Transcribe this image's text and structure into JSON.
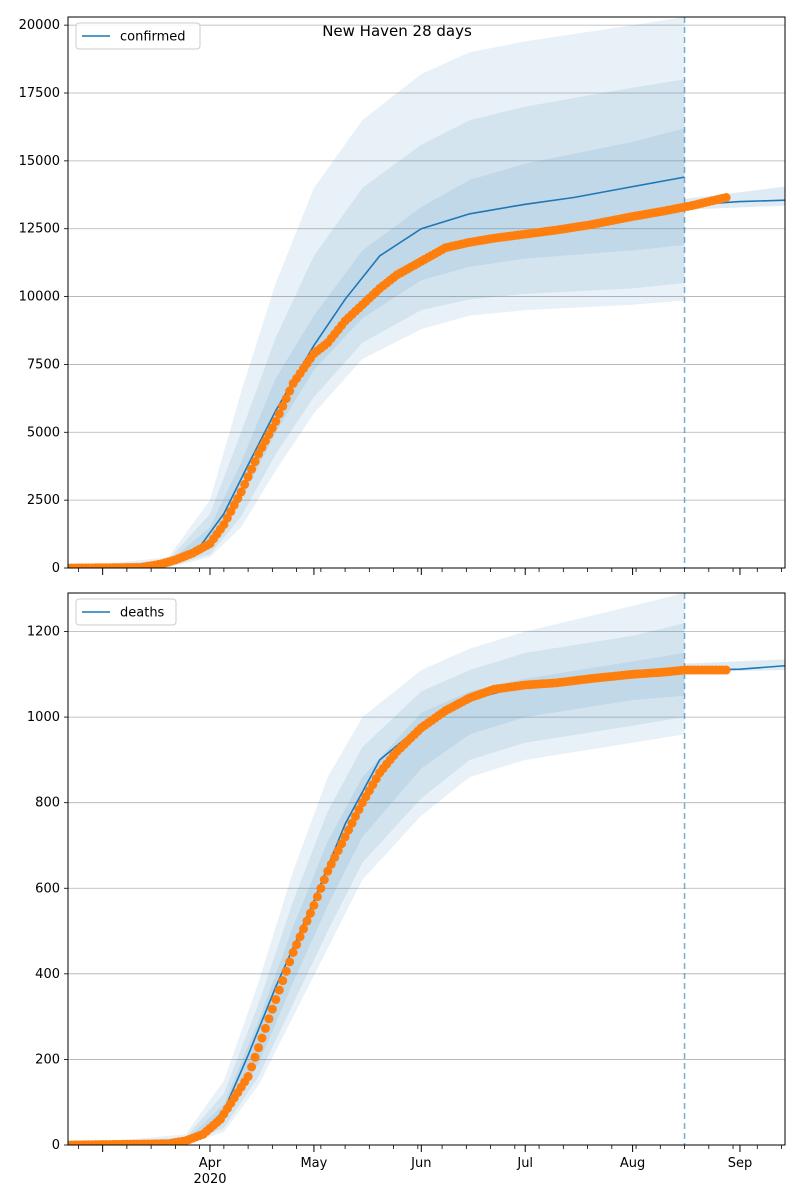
{
  "title": "New Haven 28 days",
  "colors": {
    "model": "#1f77b4",
    "observed": "#ff7f0e",
    "grid": "#b0b0b0",
    "band": "#1f77b4"
  },
  "x_axis": {
    "start": "2020-02-20",
    "end": "2020-09-14",
    "major_ticks": [
      {
        "date": "2020-04-01",
        "label": "Apr",
        "sublabel": "2020"
      },
      {
        "date": "2020-05-01",
        "label": "May",
        "sublabel": ""
      },
      {
        "date": "2020-06-01",
        "label": "Jun",
        "sublabel": ""
      },
      {
        "date": "2020-07-01",
        "label": "Jul",
        "sublabel": ""
      },
      {
        "date": "2020-08-01",
        "label": "Aug",
        "sublabel": ""
      },
      {
        "date": "2020-09-01",
        "label": "Sep",
        "sublabel": ""
      }
    ],
    "forecast_date": "2020-08-16"
  },
  "chart_data": [
    {
      "type": "line",
      "legend": "confirmed",
      "legend_position": "top-left",
      "grid": "y",
      "ylim": [
        0,
        20300
      ],
      "yticks": [
        "0",
        "2500",
        "5000",
        "7500",
        "10000",
        "12500",
        "15000",
        "17500",
        "20000"
      ],
      "model": {
        "x": [
          "2020-02-20",
          "2020-03-10",
          "2020-03-20",
          "2020-03-28",
          "2020-04-05",
          "2020-04-12",
          "2020-04-20",
          "2020-05-01",
          "2020-05-10",
          "2020-05-20",
          "2020-06-01",
          "2020-06-15",
          "2020-07-01",
          "2020-07-15",
          "2020-08-01",
          "2020-08-16",
          "2020-08-20",
          "2020-09-01",
          "2020-09-14"
        ],
        "y": [
          0,
          10,
          150,
          600,
          2000,
          3800,
          5800,
          8200,
          9900,
          11500,
          12500,
          13050,
          13400,
          13650,
          14050,
          14400,
          13400,
          13500,
          13550
        ]
      },
      "bands": {
        "x": [
          "2020-02-20",
          "2020-03-20",
          "2020-04-01",
          "2020-04-10",
          "2020-04-20",
          "2020-05-01",
          "2020-05-15",
          "2020-06-01",
          "2020-06-15",
          "2020-07-01",
          "2020-08-01",
          "2020-08-16"
        ],
        "upper95": [
          0,
          400,
          2500,
          6500,
          10500,
          14000,
          16500,
          18200,
          19000,
          19400,
          20000,
          20300
        ],
        "upper80": [
          0,
          300,
          2000,
          5000,
          8500,
          11500,
          14000,
          15600,
          16500,
          17000,
          17700,
          18000
        ],
        "upper50": [
          0,
          220,
          1500,
          3900,
          7000,
          9300,
          11700,
          13300,
          14300,
          14900,
          15700,
          16200
        ],
        "lower50": [
          0,
          80,
          700,
          2500,
          5000,
          7300,
          9200,
          10600,
          11100,
          11400,
          11700,
          11900
        ],
        "lower80": [
          0,
          40,
          500,
          1900,
          4200,
          6300,
          8300,
          9500,
          9900,
          10100,
          10300,
          10500
        ],
        "lower95": [
          0,
          20,
          400,
          1500,
          3600,
          5700,
          7700,
          8800,
          9300,
          9500,
          9700,
          9850
        ]
      },
      "forecast_band": {
        "x": [
          "2020-08-16",
          "2020-09-14"
        ],
        "upper": [
          13600,
          14050
        ],
        "lower": [
          13200,
          13350
        ]
      },
      "observed": {
        "x": [
          "2020-02-20",
          "2020-03-12",
          "2020-03-18",
          "2020-03-22",
          "2020-03-27",
          "2020-04-01",
          "2020-04-05",
          "2020-04-10",
          "2020-04-15",
          "2020-04-20",
          "2020-04-25",
          "2020-05-01",
          "2020-05-05",
          "2020-05-10",
          "2020-05-15",
          "2020-05-20",
          "2020-05-25",
          "2020-06-01",
          "2020-06-08",
          "2020-06-15",
          "2020-06-22",
          "2020-07-01",
          "2020-07-10",
          "2020-07-20",
          "2020-08-01",
          "2020-08-10",
          "2020-08-18",
          "2020-08-28"
        ],
        "y": [
          0,
          20,
          150,
          300,
          550,
          900,
          1600,
          2800,
          4200,
          5400,
          6800,
          7900,
          8300,
          9100,
          9700,
          10300,
          10800,
          11300,
          11800,
          12000,
          12150,
          12300,
          12450,
          12650,
          12950,
          13150,
          13350,
          13650
        ]
      }
    },
    {
      "type": "line",
      "legend": "deaths",
      "legend_position": "top-left",
      "grid": "y",
      "ylim": [
        0,
        1290
      ],
      "yticks": [
        "0",
        "200",
        "400",
        "600",
        "800",
        "1000",
        "1200"
      ],
      "model": {
        "x": [
          "2020-02-20",
          "2020-03-20",
          "2020-03-28",
          "2020-04-05",
          "2020-04-12",
          "2020-04-20",
          "2020-05-01",
          "2020-05-10",
          "2020-05-20",
          "2020-06-01",
          "2020-06-15",
          "2020-07-01",
          "2020-07-15",
          "2020-08-01",
          "2020-08-16",
          "2020-08-20",
          "2020-09-01",
          "2020-09-14"
        ],
        "y": [
          0,
          3,
          15,
          80,
          210,
          370,
          570,
          750,
          900,
          980,
          1040,
          1075,
          1080,
          1100,
          1110,
          1110,
          1112,
          1120
        ]
      },
      "bands": {
        "x": [
          "2020-02-20",
          "2020-03-25",
          "2020-04-05",
          "2020-04-15",
          "2020-04-25",
          "2020-05-05",
          "2020-05-15",
          "2020-06-01",
          "2020-06-15",
          "2020-07-01",
          "2020-08-01",
          "2020-08-16"
        ],
        "upper95": [
          0,
          25,
          150,
          380,
          640,
          860,
          1000,
          1110,
          1160,
          1200,
          1260,
          1290
        ],
        "upper80": [
          0,
          18,
          120,
          330,
          570,
          780,
          930,
          1060,
          1110,
          1150,
          1190,
          1220
        ],
        "upper50": [
          0,
          12,
          95,
          290,
          510,
          710,
          860,
          1010,
          1060,
          1090,
          1130,
          1150
        ],
        "lower50": [
          0,
          5,
          55,
          190,
          380,
          560,
          720,
          880,
          960,
          1000,
          1040,
          1050
        ],
        "lower80": [
          0,
          3,
          40,
          160,
          330,
          500,
          660,
          810,
          900,
          940,
          980,
          1000
        ],
        "lower95": [
          0,
          2,
          30,
          140,
          300,
          460,
          620,
          770,
          860,
          900,
          940,
          960
        ]
      },
      "forecast_band": {
        "x": [
          "2020-08-16",
          "2020-09-14"
        ],
        "upper": [
          1125,
          1135
        ],
        "lower": [
          1105,
          1110
        ]
      },
      "observed": {
        "x": [
          "2020-02-20",
          "2020-03-20",
          "2020-03-25",
          "2020-03-30",
          "2020-04-04",
          "2020-04-08",
          "2020-04-12",
          "2020-04-16",
          "2020-04-20",
          "2020-04-25",
          "2020-05-01",
          "2020-05-05",
          "2020-05-10",
          "2020-05-15",
          "2020-05-20",
          "2020-05-25",
          "2020-06-01",
          "2020-06-08",
          "2020-06-15",
          "2020-06-22",
          "2020-07-01",
          "2020-07-10",
          "2020-07-20",
          "2020-08-01",
          "2020-08-10",
          "2020-08-16",
          "2020-08-28"
        ],
        "y": [
          0,
          3,
          10,
          25,
          60,
          110,
          160,
          250,
          340,
          450,
          560,
          640,
          720,
          800,
          870,
          920,
          975,
          1015,
          1045,
          1065,
          1075,
          1080,
          1090,
          1100,
          1105,
          1110,
          1110
        ]
      }
    }
  ]
}
